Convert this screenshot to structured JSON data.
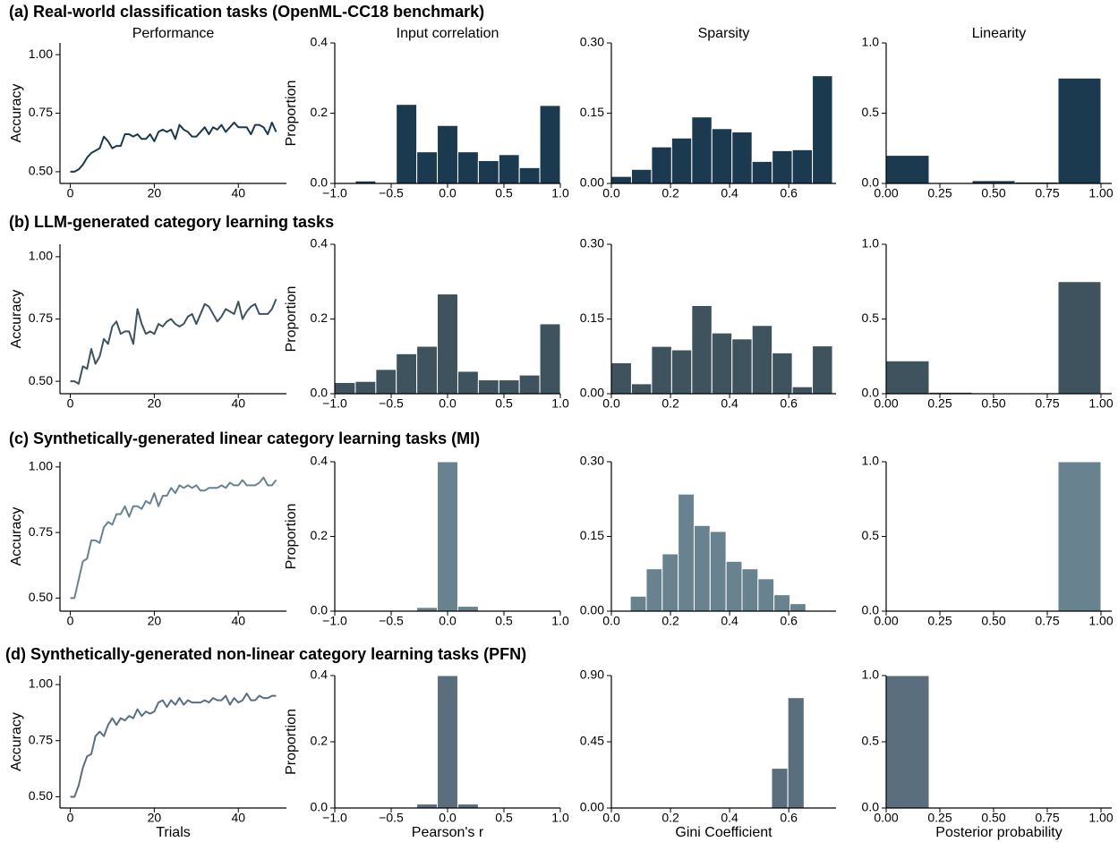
{
  "chart_data": [
    {
      "type": "line",
      "panel_title": "(a) Real-world classification tasks (OpenML-CC18 benchmark)",
      "title": "Performance",
      "ylabel": "Accuracy",
      "color": "#1b3a4f",
      "x": [
        0,
        1,
        2,
        3,
        4,
        5,
        6,
        7,
        8,
        9,
        10,
        11,
        12,
        13,
        14,
        15,
        16,
        17,
        18,
        19,
        20,
        21,
        22,
        23,
        24,
        25,
        26,
        27,
        28,
        29,
        30,
        31,
        32,
        33,
        34,
        35,
        36,
        37,
        38,
        39,
        40,
        41,
        42,
        43,
        44,
        45,
        46,
        47,
        48,
        49
      ],
      "values": [
        0.5,
        0.5,
        0.51,
        0.53,
        0.56,
        0.58,
        0.59,
        0.6,
        0.65,
        0.63,
        0.6,
        0.61,
        0.61,
        0.66,
        0.66,
        0.65,
        0.66,
        0.64,
        0.64,
        0.66,
        0.63,
        0.67,
        0.68,
        0.67,
        0.68,
        0.64,
        0.7,
        0.68,
        0.67,
        0.65,
        0.65,
        0.67,
        0.69,
        0.66,
        0.69,
        0.68,
        0.7,
        0.67,
        0.69,
        0.71,
        0.69,
        0.69,
        0.69,
        0.66,
        0.7,
        0.7,
        0.69,
        0.66,
        0.71,
        0.67
      ],
      "xlim": [
        -2.45,
        51.45
      ],
      "ylim": [
        0.45,
        1.05
      ],
      "xticks": [
        0,
        20,
        40
      ],
      "yticks": [
        {
          "value": 0.5,
          "label": "0.50"
        },
        0.75,
        {
          "value": 1,
          "label": "1.00"
        }
      ]
    },
    {
      "type": "histogram",
      "title": "Input correlation",
      "ylabel": "Proportion",
      "color": "#1b3a4f",
      "bins": [
        -1,
        -0.818,
        -0.636,
        -0.455,
        -0.273,
        -0.091,
        0.091,
        0.273,
        0.455,
        0.636,
        0.818,
        1
      ],
      "values": [
        0,
        0.007,
        0,
        0.225,
        0.09,
        0.165,
        0.09,
        0.065,
        0.082,
        0.045,
        0.222
      ],
      "xlim": [
        -1,
        1
      ],
      "ylim": [
        0,
        0.4
      ],
      "xticks": [
        {
          "value": -1,
          "label": "−1.0"
        },
        {
          "value": -0.5,
          "label": "−0.5"
        },
        {
          "value": 0,
          "label": "0.0"
        },
        0.5,
        {
          "value": 1,
          "label": "1.0"
        }
      ],
      "yticks": [
        {
          "value": 0,
          "label": "0.0"
        },
        0.2,
        0.4
      ]
    },
    {
      "type": "histogram",
      "title": "Sparsity",
      "color": "#1b3a4f",
      "bins": [
        0,
        0.068,
        0.136,
        0.204,
        0.272,
        0.34,
        0.408,
        0.476,
        0.544,
        0.612,
        0.68,
        0.748
      ],
      "values": [
        0.015,
        0.03,
        0.078,
        0.097,
        0.142,
        0.117,
        0.11,
        0.047,
        0.07,
        0.072,
        0.23
      ],
      "xlim": [
        0,
        0.76
      ],
      "ylim": [
        0,
        0.3
      ],
      "xticks": [
        {
          "value": 0,
          "label": "0.0"
        },
        0.2,
        0.4,
        0.6
      ],
      "yticks": [
        {
          "value": 0,
          "label": "0.00"
        },
        0.15,
        {
          "value": 0.3,
          "label": "0.30"
        }
      ]
    },
    {
      "type": "histogram",
      "title": "Linearity",
      "color": "#1b3a4f",
      "bins": [
        0,
        0.2,
        0.4,
        0.6,
        0.8,
        1
      ],
      "values": [
        0.2,
        0.005,
        0.02,
        0.01,
        0.75
      ],
      "xlim": [
        0,
        1.05
      ],
      "ylim": [
        0,
        1
      ],
      "xticks": [
        {
          "value": 0,
          "label": "0.00"
        },
        0.25,
        {
          "value": 0.5,
          "label": "0.50"
        },
        0.75,
        {
          "value": 1,
          "label": "1.00"
        }
      ],
      "yticks": [
        {
          "value": 0,
          "label": "0.0"
        },
        0.5,
        {
          "value": 1,
          "label": "1.0"
        }
      ]
    },
    {
      "type": "line",
      "panel_title": "(b) LLM-generated category learning tasks",
      "ylabel": "Accuracy",
      "color": "#3e535e",
      "x": [
        0,
        1,
        2,
        3,
        4,
        5,
        6,
        7,
        8,
        9,
        10,
        11,
        12,
        13,
        14,
        15,
        16,
        17,
        18,
        19,
        20,
        21,
        22,
        23,
        24,
        25,
        26,
        27,
        28,
        29,
        30,
        31,
        32,
        33,
        34,
        35,
        36,
        37,
        38,
        39,
        40,
        41,
        42,
        43,
        44,
        45,
        46,
        47,
        48,
        49
      ],
      "values": [
        0.5,
        0.5,
        0.49,
        0.56,
        0.55,
        0.63,
        0.57,
        0.6,
        0.67,
        0.65,
        0.72,
        0.74,
        0.69,
        0.7,
        0.7,
        0.65,
        0.79,
        0.73,
        0.69,
        0.7,
        0.69,
        0.73,
        0.72,
        0.74,
        0.75,
        0.73,
        0.72,
        0.73,
        0.76,
        0.77,
        0.73,
        0.77,
        0.81,
        0.8,
        0.77,
        0.74,
        0.76,
        0.79,
        0.78,
        0.77,
        0.82,
        0.75,
        0.78,
        0.8,
        0.81,
        0.77,
        0.77,
        0.77,
        0.79,
        0.83
      ],
      "xlim": [
        -2.45,
        51.45
      ],
      "ylim": [
        0.45,
        1.05
      ],
      "xticks": [
        0,
        20,
        40
      ],
      "yticks": [
        {
          "value": 0.5,
          "label": "0.50"
        },
        0.75,
        {
          "value": 1,
          "label": "1.00"
        }
      ]
    },
    {
      "type": "histogram",
      "ylabel": "Proportion",
      "color": "#3e535e",
      "bins": [
        -1,
        -0.818,
        -0.636,
        -0.455,
        -0.273,
        -0.091,
        0.091,
        0.273,
        0.455,
        0.636,
        0.818,
        1
      ],
      "values": [
        0.03,
        0.033,
        0.065,
        0.107,
        0.127,
        0.267,
        0.06,
        0.037,
        0.037,
        0.05,
        0.187
      ],
      "xlim": [
        -1,
        1
      ],
      "ylim": [
        0,
        0.4
      ],
      "xticks": [
        {
          "value": -1,
          "label": "−1.0"
        },
        {
          "value": -0.5,
          "label": "−0.5"
        },
        {
          "value": 0,
          "label": "0.0"
        },
        0.5,
        {
          "value": 1,
          "label": "1.0"
        }
      ],
      "yticks": [
        {
          "value": 0,
          "label": "0.0"
        },
        0.2,
        0.4
      ]
    },
    {
      "type": "histogram",
      "color": "#3e535e",
      "bins": [
        0,
        0.068,
        0.136,
        0.204,
        0.272,
        0.34,
        0.408,
        0.476,
        0.544,
        0.612,
        0.68,
        0.748
      ],
      "values": [
        0.062,
        0.02,
        0.095,
        0.088,
        0.177,
        0.122,
        0.11,
        0.137,
        0.082,
        0.014,
        0.096
      ],
      "xlim": [
        0,
        0.76
      ],
      "ylim": [
        0,
        0.3
      ],
      "xticks": [
        {
          "value": 0,
          "label": "0.0"
        },
        0.2,
        0.4,
        0.6
      ],
      "yticks": [
        {
          "value": 0,
          "label": "0.00"
        },
        0.15,
        {
          "value": 0.3,
          "label": "0.30"
        }
      ]
    },
    {
      "type": "histogram",
      "color": "#3e535e",
      "bins": [
        0,
        0.2,
        0.4,
        0.6,
        0.8,
        1
      ],
      "values": [
        0.22,
        0.01,
        0,
        0,
        0.75
      ],
      "xlim": [
        0,
        1.05
      ],
      "ylim": [
        0,
        1
      ],
      "xticks": [
        {
          "value": 0,
          "label": "0.00"
        },
        0.25,
        {
          "value": 0.5,
          "label": "0.50"
        },
        0.75,
        {
          "value": 1,
          "label": "1.00"
        }
      ],
      "yticks": [
        {
          "value": 0,
          "label": "0.0"
        },
        0.5,
        {
          "value": 1,
          "label": "1.0"
        }
      ]
    },
    {
      "type": "line",
      "panel_title": "(c) Synthetically-generated linear category learning tasks (MI)",
      "ylabel": "Accuracy",
      "color": "#68838f",
      "x": [
        0,
        1,
        2,
        3,
        4,
        5,
        6,
        7,
        8,
        9,
        10,
        11,
        12,
        13,
        14,
        15,
        16,
        17,
        18,
        19,
        20,
        21,
        22,
        23,
        24,
        25,
        26,
        27,
        28,
        29,
        30,
        31,
        32,
        33,
        34,
        35,
        36,
        37,
        38,
        39,
        40,
        41,
        42,
        43,
        44,
        45,
        46,
        47,
        48,
        49
      ],
      "values": [
        0.5,
        0.5,
        0.57,
        0.64,
        0.65,
        0.72,
        0.72,
        0.71,
        0.77,
        0.79,
        0.78,
        0.82,
        0.82,
        0.85,
        0.81,
        0.85,
        0.85,
        0.84,
        0.87,
        0.86,
        0.9,
        0.85,
        0.89,
        0.89,
        0.92,
        0.9,
        0.93,
        0.92,
        0.93,
        0.92,
        0.93,
        0.91,
        0.91,
        0.92,
        0.92,
        0.92,
        0.93,
        0.92,
        0.94,
        0.93,
        0.93,
        0.95,
        0.93,
        0.93,
        0.93,
        0.94,
        0.96,
        0.93,
        0.93,
        0.95
      ],
      "xlim": [
        -2.45,
        51.45
      ],
      "ylim": [
        0.45,
        1.02
      ],
      "xticks": [
        0,
        20,
        40
      ],
      "yticks": [
        {
          "value": 0.5,
          "label": "0.50"
        },
        0.75,
        {
          "value": 1,
          "label": "1.00"
        }
      ]
    },
    {
      "type": "histogram",
      "ylabel": "Proportion",
      "color": "#68838f",
      "bins": [
        -1,
        -0.818,
        -0.636,
        -0.455,
        -0.273,
        -0.091,
        0.091,
        0.273,
        0.455,
        0.636,
        0.818,
        1
      ],
      "values": [
        0,
        0,
        0,
        0,
        0.01,
        0.4,
        0.013,
        0,
        0,
        0,
        0
      ],
      "xlim": [
        -1,
        1
      ],
      "ylim": [
        0,
        0.4
      ],
      "xticks": [
        {
          "value": -1,
          "label": "−1.0"
        },
        {
          "value": -0.5,
          "label": "−0.5"
        },
        {
          "value": 0,
          "label": "0.0"
        },
        0.5,
        {
          "value": 1,
          "label": "1.0"
        }
      ],
      "yticks": [
        {
          "value": 0,
          "label": "0.0"
        },
        0.2,
        0.4
      ]
    },
    {
      "type": "histogram",
      "color": "#68838f",
      "bins": [
        0.064,
        0.118,
        0.172,
        0.226,
        0.28,
        0.334,
        0.388,
        0.442,
        0.496,
        0.55,
        0.604,
        0.658
      ],
      "values": [
        0.03,
        0.085,
        0.115,
        0.235,
        0.172,
        0.16,
        0.1,
        0.085,
        0.065,
        0.033,
        0.015
      ],
      "xlim": [
        0,
        0.76
      ],
      "ylim": [
        0,
        0.3
      ],
      "xticks": [
        {
          "value": 0,
          "label": "0.0"
        },
        0.2,
        0.4,
        0.6
      ],
      "yticks": [
        {
          "value": 0,
          "label": "0.00"
        },
        0.15,
        {
          "value": 0.3,
          "label": "0.30"
        }
      ]
    },
    {
      "type": "histogram",
      "color": "#68838f",
      "bins": [
        0,
        0.2,
        0.4,
        0.6,
        0.8,
        1
      ],
      "values": [
        0,
        0,
        0,
        0,
        1
      ],
      "xlim": [
        0,
        1.05
      ],
      "ylim": [
        0,
        1
      ],
      "xticks": [
        {
          "value": 0,
          "label": "0.00"
        },
        0.25,
        {
          "value": 0.5,
          "label": "0.50"
        },
        0.75,
        {
          "value": 1,
          "label": "1.00"
        }
      ],
      "yticks": [
        {
          "value": 0,
          "label": "0.0"
        },
        0.5,
        {
          "value": 1,
          "label": "1.0"
        }
      ]
    },
    {
      "type": "line",
      "panel_title": "(d) Synthetically-generated non-linear category learning tasks (PFN)",
      "ylabel": "Accuracy",
      "xlabel": "Trials",
      "color": "#5a6e7d",
      "x": [
        0,
        1,
        2,
        3,
        4,
        5,
        6,
        7,
        8,
        9,
        10,
        11,
        12,
        13,
        14,
        15,
        16,
        17,
        18,
        19,
        20,
        21,
        22,
        23,
        24,
        25,
        26,
        27,
        28,
        29,
        30,
        31,
        32,
        33,
        34,
        35,
        36,
        37,
        38,
        39,
        40,
        41,
        42,
        43,
        44,
        45,
        46,
        47,
        48,
        49
      ],
      "values": [
        0.5,
        0.5,
        0.55,
        0.63,
        0.68,
        0.69,
        0.77,
        0.79,
        0.77,
        0.82,
        0.85,
        0.82,
        0.85,
        0.84,
        0.86,
        0.85,
        0.89,
        0.86,
        0.88,
        0.87,
        0.88,
        0.92,
        0.93,
        0.9,
        0.93,
        0.91,
        0.94,
        0.91,
        0.93,
        0.92,
        0.92,
        0.92,
        0.93,
        0.92,
        0.94,
        0.93,
        0.93,
        0.95,
        0.91,
        0.94,
        0.92,
        0.93,
        0.96,
        0.93,
        0.93,
        0.95,
        0.94,
        0.94,
        0.95,
        0.95
      ],
      "xlim": [
        -2.45,
        51.45
      ],
      "ylim": [
        0.45,
        1.04
      ],
      "xticks": [
        0,
        20,
        40
      ],
      "yticks": [
        {
          "value": 0.5,
          "label": "0.50"
        },
        0.75,
        {
          "value": 1,
          "label": "1.00"
        }
      ]
    },
    {
      "type": "histogram",
      "ylabel": "Proportion",
      "xlabel": "Pearson's r",
      "color": "#5a6e7d",
      "bins": [
        -1,
        -0.818,
        -0.636,
        -0.455,
        -0.273,
        -0.091,
        0.091,
        0.273,
        0.455,
        0.636,
        0.818,
        1
      ],
      "values": [
        0,
        0,
        0,
        0,
        0.012,
        0.4,
        0.012,
        0,
        0,
        0,
        0
      ],
      "xlim": [
        -1,
        1
      ],
      "ylim": [
        0,
        0.4
      ],
      "xticks": [
        {
          "value": -1,
          "label": "−1.0"
        },
        {
          "value": -0.5,
          "label": "−0.5"
        },
        {
          "value": 0,
          "label": "0.0"
        },
        0.5,
        {
          "value": 1,
          "label": "1.0"
        }
      ],
      "yticks": [
        {
          "value": 0,
          "label": "0.0"
        },
        0.2,
        0.4
      ]
    },
    {
      "type": "histogram",
      "xlabel": "Gini Coefficient",
      "color": "#5a6e7d",
      "bins": [
        0.542,
        0.597,
        0.652
      ],
      "values": [
        0.27,
        0.75
      ],
      "xlim": [
        0,
        0.76
      ],
      "ylim": [
        0,
        0.9
      ],
      "xticks": [
        {
          "value": 0,
          "label": "0.0"
        },
        0.2,
        0.4,
        0.6
      ],
      "yticks": [
        {
          "value": 0,
          "label": "0.00"
        },
        0.45,
        {
          "value": 0.9,
          "label": "0.90"
        }
      ]
    },
    {
      "type": "histogram",
      "xlabel": "Posterior probability",
      "color": "#5a6e7d",
      "bins": [
        0,
        0.2,
        0.4,
        0.6,
        0.8,
        1
      ],
      "values": [
        1,
        0,
        0,
        0,
        0
      ],
      "xlim": [
        0,
        1.05
      ],
      "ylim": [
        0,
        1
      ],
      "xticks": [
        {
          "value": 0,
          "label": "0.00"
        },
        0.25,
        {
          "value": 0.5,
          "label": "0.50"
        },
        0.75,
        {
          "value": 1,
          "label": "1.00"
        }
      ],
      "yticks": [
        {
          "value": 0,
          "label": "0.0"
        },
        0.5,
        {
          "value": 1,
          "label": "1.0"
        }
      ]
    }
  ]
}
